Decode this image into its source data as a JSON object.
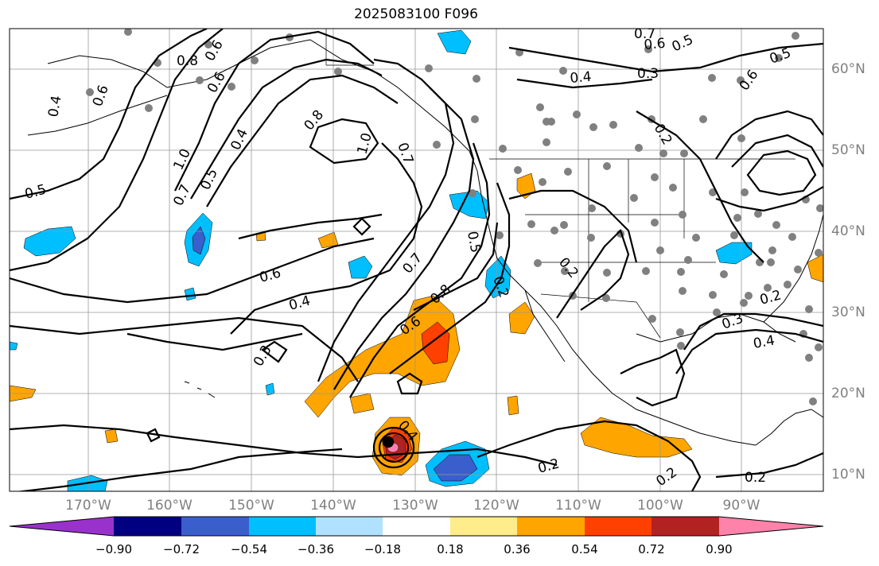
{
  "title": "2025083100 F096",
  "latitude_labels": [
    "60°N",
    "50°N",
    "40°N",
    "30°N",
    "20°N",
    "10°N"
  ],
  "longitude_labels": [
    "170°W",
    "160°W",
    "150°W",
    "140°W",
    "130°W",
    "120°W",
    "110°W",
    "100°W",
    "90°W"
  ],
  "colorbar": {
    "tick_labels": [
      "−0.90",
      "−0.72",
      "−0.54",
      "−0.36",
      "−0.18",
      "0.18",
      "0.36",
      "0.54",
      "0.72",
      "0.90"
    ],
    "colors": [
      "#9932cc",
      "#000080",
      "#3a5fcd",
      "#00bfff",
      "#b0e2ff",
      "#ffffff",
      "#ffec8b",
      "#ffa500",
      "#ff4000",
      "#b22222",
      "#ff82ab"
    ]
  },
  "contour_labels": [
    "0.8",
    "0.6",
    "0.6",
    "0.4",
    "0.6",
    "1.0",
    "0.7",
    "0.5",
    "0.5",
    "0.4",
    "0.8",
    "1.0",
    "0.7",
    "0.5",
    "0.6",
    "0.4",
    "0.3",
    "0.7",
    "0.8",
    "0.6",
    "0.4",
    "0.2",
    "0.2",
    "0.2",
    "0.6",
    "0.5",
    "0.4",
    "0.3",
    "0.7",
    "0.5",
    "0.6",
    "0.2",
    "0.2",
    "0.3",
    "0.4",
    "0.2",
    "0.2"
  ]
}
